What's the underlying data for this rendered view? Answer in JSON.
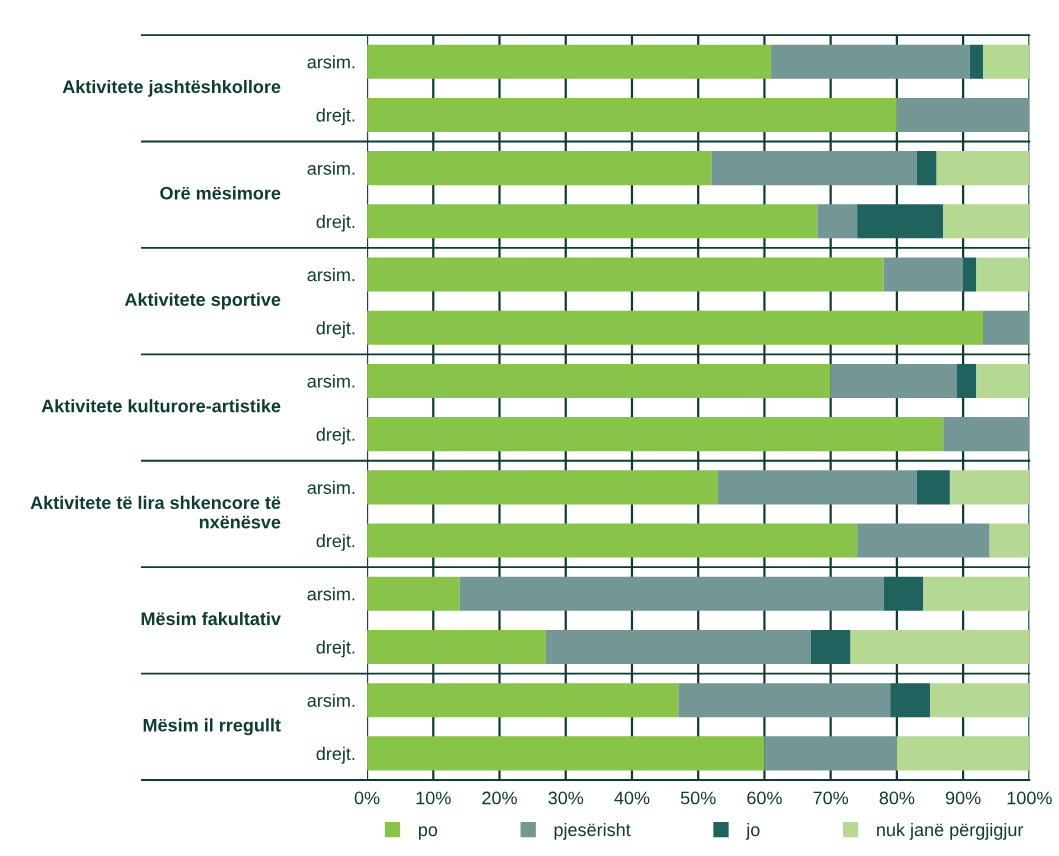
{
  "chart_data": {
    "type": "bar",
    "orientation": "horizontal",
    "stacked": true,
    "categories": [
      "arsim.",
      "drejt.",
      "arsim.",
      "drejt.",
      "arsim.",
      "drejt.",
      "arsim.",
      "drejt.",
      "arsim.",
      "drejt.",
      "arsim.",
      "drejt.",
      "arsim.",
      "drejt."
    ],
    "annotations": [
      "Aktivitete jashtëshkollore",
      "Orë mësimore",
      "Aktivitete sportive",
      "Aktivitete kulturore-artistike",
      "Aktivitete të lira shkencore të nxënësve",
      "Mësim fakultativ",
      "Mësim il rregullt"
    ],
    "series": [
      {
        "name": "po",
        "color": "#88c34a",
        "values": [
          61,
          80,
          52,
          68,
          78,
          93,
          70,
          87,
          53,
          74,
          14,
          27,
          47,
          60
        ]
      },
      {
        "name": "pjesërisht",
        "color": "#749795",
        "values": [
          30,
          20,
          31,
          6,
          12,
          7,
          19,
          13,
          30,
          20,
          64,
          40,
          32,
          20
        ]
      },
      {
        "name": "jo",
        "color": "#20625e",
        "values": [
          2,
          0,
          3,
          13,
          2,
          0,
          3,
          0,
          5,
          0,
          6,
          6,
          6,
          0
        ]
      },
      {
        "name": "nuk janë përgjigjur",
        "color": "#b5d892",
        "values": [
          7,
          0,
          14,
          13,
          8,
          0,
          8,
          0,
          12,
          6,
          16,
          27,
          15,
          20
        ]
      }
    ],
    "xlim": [
      0,
      100
    ],
    "xticks": [
      {
        "value": 0,
        "label": "0%"
      },
      {
        "value": 10,
        "label": "10%"
      },
      {
        "value": 20,
        "label": "20%"
      },
      {
        "value": 30,
        "label": "30%"
      },
      {
        "value": 40,
        "label": "40%"
      },
      {
        "value": 50,
        "label": "50%"
      },
      {
        "value": 60,
        "label": "60%"
      },
      {
        "value": 70,
        "label": "70%"
      },
      {
        "value": 80,
        "label": "80%"
      },
      {
        "value": 90,
        "label": "90%"
      },
      {
        "value": 100,
        "label": "100%"
      }
    ],
    "grid": "x",
    "legend": "bottom"
  }
}
